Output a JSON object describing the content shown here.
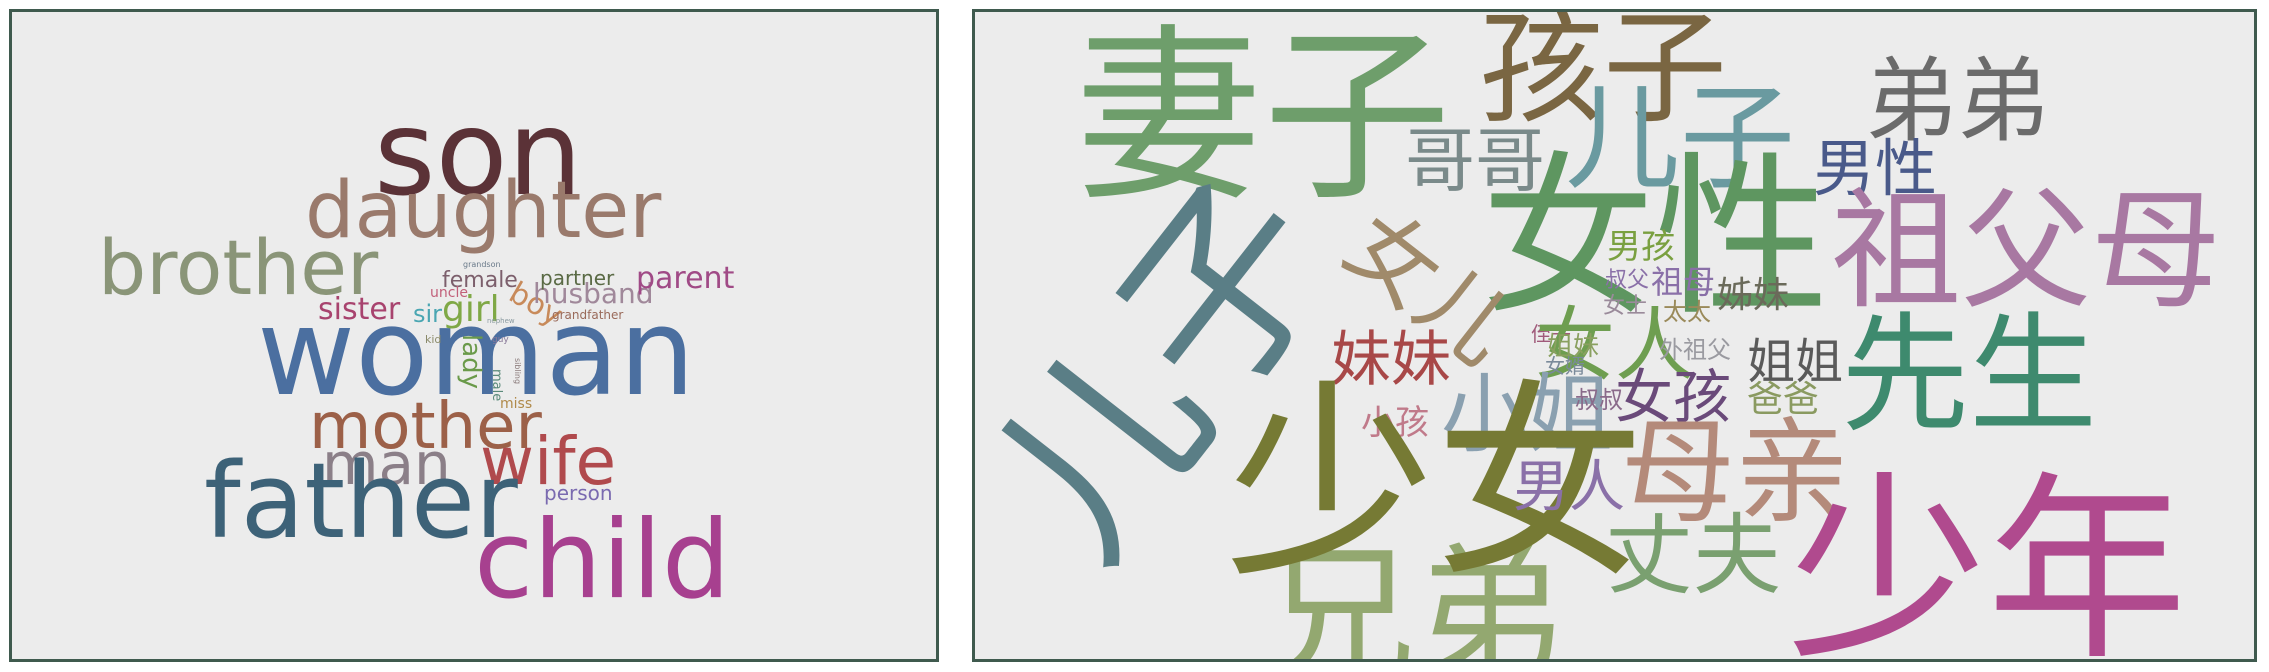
{
  "left_cloud": {
    "words": [
      {
        "id": "son",
        "text": "son",
        "color": "#5b3237"
      },
      {
        "id": "daughter",
        "text": "daughter",
        "color": "#9a7a6c"
      },
      {
        "id": "brother",
        "text": "brother",
        "color": "#8a9578"
      },
      {
        "id": "woman",
        "text": "woman",
        "color": "#4b6fa0"
      },
      {
        "id": "mother",
        "text": "mother",
        "color": "#9c6048"
      },
      {
        "id": "man",
        "text": "man",
        "color": "#8b7f88"
      },
      {
        "id": "wife",
        "text": "wife",
        "color": "#b04a4d"
      },
      {
        "id": "father",
        "text": "father",
        "color": "#3d6278"
      },
      {
        "id": "child",
        "text": "child",
        "color": "#a7408f"
      },
      {
        "id": "sister",
        "text": "sister",
        "color": "#a8436e"
      },
      {
        "id": "sir",
        "text": "sir",
        "color": "#4aa6b2"
      },
      {
        "id": "girl",
        "text": "girl",
        "color": "#7fa846"
      },
      {
        "id": "boy",
        "text": "boy",
        "color": "#c88a5a"
      },
      {
        "id": "husband",
        "text": "husband",
        "color": "#a0889a"
      },
      {
        "id": "female",
        "text": "female",
        "color": "#7c5f6c"
      },
      {
        "id": "partner",
        "text": "partner",
        "color": "#5a6a45"
      },
      {
        "id": "parent",
        "text": "parent",
        "color": "#a04a86"
      },
      {
        "id": "lady",
        "text": "lady",
        "color": "#6a9a4a"
      },
      {
        "id": "uncle",
        "text": "uncle",
        "color": "#c2607a"
      },
      {
        "id": "grandson",
        "text": "grandson",
        "color": "#6a7a8a"
      },
      {
        "id": "grandfather",
        "text": "grandfather",
        "color": "#9a6a5a"
      },
      {
        "id": "kid",
        "text": "kid",
        "color": "#8a8a6a"
      },
      {
        "id": "guy",
        "text": "guy",
        "color": "#8a7a9a"
      },
      {
        "id": "male",
        "text": "male",
        "color": "#5a8a7a"
      },
      {
        "id": "miss",
        "text": "miss",
        "color": "#b08a4a"
      },
      {
        "id": "person",
        "text": "person",
        "color": "#7a6ab0"
      },
      {
        "id": "nephew",
        "text": "nephew",
        "color": "#8a9aa0"
      },
      {
        "id": "sibling",
        "text": "sibling",
        "color": "#8a7a7a"
      }
    ]
  },
  "right_cloud": {
    "words": [
      {
        "id": "qizi",
        "text": "妻子",
        "color": "#6e9e6b"
      },
      {
        "id": "haizi",
        "text": "孩子",
        "color": "#7a6642"
      },
      {
        "id": "erzi",
        "text": "儿子",
        "color": "#6a9aa0"
      },
      {
        "id": "didi",
        "text": "弟弟",
        "color": "#6b6b6b"
      },
      {
        "id": "gege",
        "text": "哥哥",
        "color": "#7a8a8a"
      },
      {
        "id": "nanxing",
        "text": "男性",
        "color": "#4a5a8a"
      },
      {
        "id": "nvxing",
        "text": "女性",
        "color": "#5e9660"
      },
      {
        "id": "nver",
        "text": "女儿",
        "color": "#a08a6a"
      },
      {
        "id": "zufumu",
        "text": "祖父母",
        "color": "#a878a2"
      },
      {
        "id": "nanhai",
        "text": "男孩",
        "color": "#7aa040"
      },
      {
        "id": "shufu",
        "text": "叔父",
        "color": "#8a70a8"
      },
      {
        "id": "zumu",
        "text": "祖母",
        "color": "#8a70a8"
      },
      {
        "id": "zimei",
        "text": "姊妹",
        "color": "#6a6a5a"
      },
      {
        "id": "nvshi",
        "text": "女士",
        "color": "#9a8a9a"
      },
      {
        "id": "taitai",
        "text": "太太",
        "color": "#9a8a5a"
      },
      {
        "id": "zhizi",
        "text": "侄子",
        "color": "#a05a7a"
      },
      {
        "id": "nvren",
        "text": "女人",
        "color": "#6e9e50"
      },
      {
        "id": "meimei",
        "text": "妹妹",
        "color": "#a84848"
      },
      {
        "id": "jiejie",
        "text": "姐姐",
        "color": "#5a5a5a"
      },
      {
        "id": "waizufu",
        "text": "外祖父",
        "color": "#9a9aa0"
      },
      {
        "id": "nvhai",
        "text": "女孩",
        "color": "#6a4a7a"
      },
      {
        "id": "baba",
        "text": "爸爸",
        "color": "#8a9a60"
      },
      {
        "id": "xiansheng",
        "text": "先生",
        "color": "#3e8a6e"
      },
      {
        "id": "jiemei",
        "text": "姐妹",
        "color": "#8aa060"
      },
      {
        "id": "nvxu",
        "text": "女婿",
        "color": "#7a8a9a"
      },
      {
        "id": "xiaojie",
        "text": "小姐",
        "color": "#8aa0b0"
      },
      {
        "id": "shushu",
        "text": "叔叔",
        "color": "#8a6a8a"
      },
      {
        "id": "xiaohai",
        "text": "小孩",
        "color": "#c07a8a"
      },
      {
        "id": "xiongdi",
        "text": "兄弟",
        "color": "#93a870"
      },
      {
        "id": "shaonv",
        "text": "少女",
        "color": "#767a34"
      },
      {
        "id": "erzi2",
        "text": "儿子",
        "color": "#5a7e86"
      },
      {
        "id": "muqin",
        "text": "母亲",
        "color": "#b48a7a"
      },
      {
        "id": "nanren",
        "text": "男人",
        "color": "#8a70a8"
      },
      {
        "id": "zhangfu",
        "text": "丈夫",
        "color": "#7aa070"
      },
      {
        "id": "shaonian",
        "text": "少年",
        "color": "#b04a8e"
      }
    ]
  }
}
